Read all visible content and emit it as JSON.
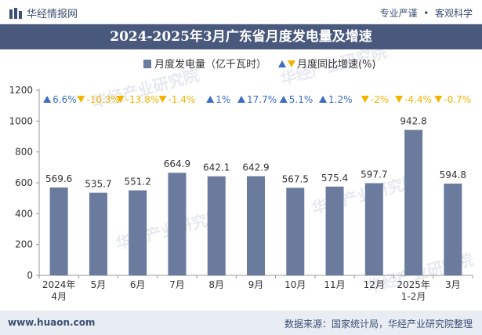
{
  "brand": {
    "name": "华经情报网",
    "tagline_left": "专业严谨",
    "tagline_right": "客观科学"
  },
  "colors": {
    "bar": "#6b7b9e",
    "up": "#3c6cc4",
    "down": "#f3b400",
    "title_bg": "#49597d",
    "footer_bg": "#e8ecf3"
  },
  "chart_data": {
    "type": "bar",
    "title": "2024-2025年3月广东省月度发电量及增速",
    "categories": [
      "2024年\n4月",
      "5月",
      "6月",
      "7月",
      "8月",
      "9月",
      "10月",
      "11月",
      "12月",
      "2025年\n1-2月",
      "3月"
    ],
    "series": [
      {
        "name": "月度发电量（亿千瓦时）",
        "values": [
          569.6,
          535.7,
          551.2,
          664.9,
          642.1,
          642.9,
          567.5,
          575.4,
          597.7,
          942.8,
          594.8
        ]
      }
    ],
    "growth": {
      "name": "月度同比增速(%)",
      "values": [
        "6.6%",
        "-10.3%",
        "-13.8%",
        "-1.4%",
        "1%",
        "17.7%",
        "5.1%",
        "1.2%",
        "-2%",
        "-4.4%",
        "-0.7%"
      ],
      "direction": [
        "up",
        "down",
        "down",
        "down",
        "up",
        "up",
        "up",
        "up",
        "down",
        "down",
        "down"
      ]
    },
    "ylim": [
      0,
      1200
    ],
    "yticks": [
      0,
      200,
      400,
      600,
      800,
      1000,
      1200
    ],
    "legend_position": "top-center",
    "grid": false
  },
  "footer": {
    "website": "www.huaon.com",
    "source": "数据来源：国家统计局，华经产业研究院整理"
  },
  "watermark": "华经产业研究院"
}
